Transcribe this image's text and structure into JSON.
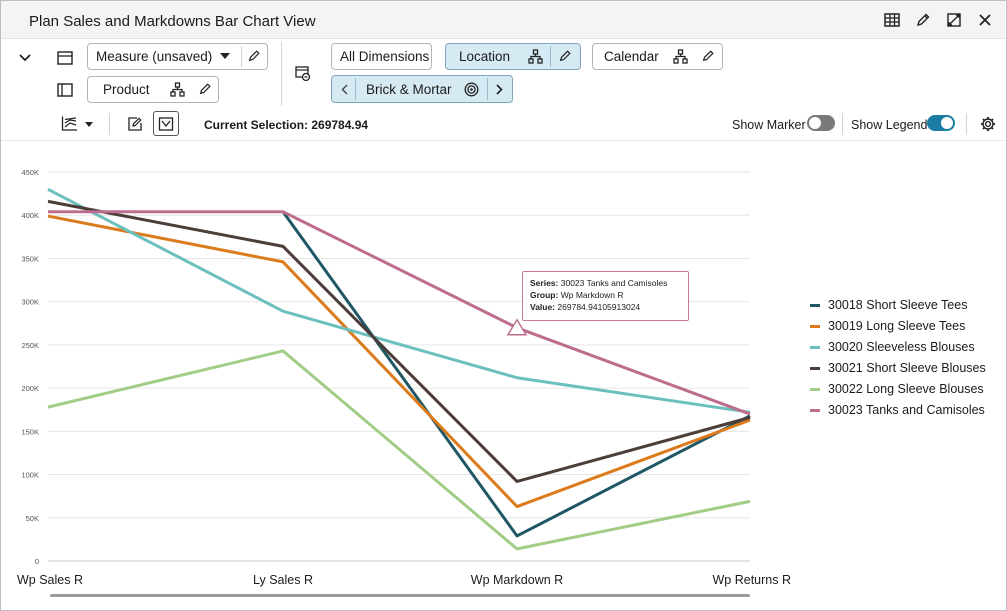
{
  "window": {
    "title": "Plan Sales and Markdowns Bar Chart View",
    "icons": [
      "table-icon",
      "edit-icon",
      "expand-icon",
      "close-icon"
    ]
  },
  "toolbar": {
    "measure_label": "Measure (unsaved)",
    "product_label": "Product",
    "all_dimensions_label": "All Dimensions",
    "location_label": "Location",
    "calendar_label": "Calendar",
    "brick_label": "Brick & Mortar"
  },
  "status": {
    "current_selection": "Current Selection: 269784.94",
    "show_marker_label": "Show Marker",
    "show_marker_on": false,
    "show_legend_label": "Show Legend",
    "show_legend_on": true,
    "accent": "#1b7da3"
  },
  "tooltip": {
    "series_label": "Series:",
    "series_value": "30023 Tanks and Camisoles",
    "group_label": "Group:",
    "group_value": "Wp Markdown R",
    "value_label": "Value:",
    "value_value": "269784.94105913024"
  },
  "chart_data": {
    "type": "line",
    "categories": [
      "Wp Sales R",
      "Ly Sales R",
      "Wp Markdown R",
      "Wp Returns R"
    ],
    "yticks": [
      "0",
      "50K",
      "100K",
      "150K",
      "200K",
      "250K",
      "300K",
      "350K",
      "400K",
      "450K"
    ],
    "ylim": [
      0,
      450000
    ],
    "grid": true,
    "legend_position": "right",
    "series": [
      {
        "name": "30018 Short Sleeve Tees",
        "color": "#1f5765",
        "values": [
          null,
          404000,
          29000,
          168000
        ]
      },
      {
        "name": "30019 Long Sleeve Tees",
        "color": "#dc7b1b",
        "values": [
          399000,
          346000,
          63000,
          163000
        ]
      },
      {
        "name": "30020 Sleeveless Blouses",
        "color": "#6bc0bd",
        "values": [
          430000,
          289000,
          212000,
          172000
        ]
      },
      {
        "name": "30021 Short Sleeve Blouses",
        "color": "#4b3d38",
        "values": [
          416000,
          364000,
          92000,
          166000
        ]
      },
      {
        "name": "30022 Long Sleeve Blouses",
        "color": "#a1cd86",
        "values": [
          178000,
          243000,
          14000,
          69000
        ]
      },
      {
        "name": "30023 Tanks and Camisoles",
        "color": "#bd6e8e",
        "values": [
          404000,
          404000,
          269785,
          170000
        ]
      }
    ],
    "highlight": {
      "series": "30023 Tanks and Camisoles",
      "category": "Wp Markdown R"
    }
  }
}
